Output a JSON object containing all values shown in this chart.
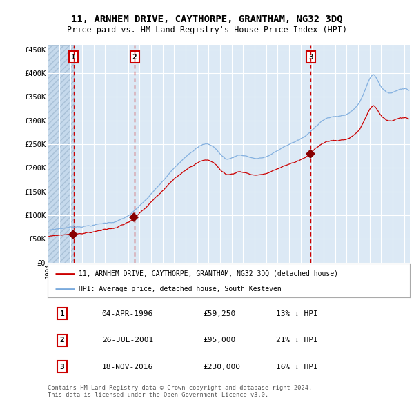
{
  "title": "11, ARNHEM DRIVE, CAYTHORPE, GRANTHAM, NG32 3DQ",
  "subtitle": "Price paid vs. HM Land Registry's House Price Index (HPI)",
  "ylabel_ticks": [
    "£0",
    "£50K",
    "£100K",
    "£150K",
    "£200K",
    "£250K",
    "£300K",
    "£350K",
    "£400K",
    "£450K"
  ],
  "ytick_values": [
    0,
    50000,
    100000,
    150000,
    200000,
    250000,
    300000,
    350000,
    400000,
    450000
  ],
  "ylim": [
    0,
    460000
  ],
  "sale_dates_str": [
    "1996-04-04",
    "2001-07-26",
    "2016-11-18"
  ],
  "sale_prices": [
    59250,
    95000,
    230000
  ],
  "sale_labels": [
    "1",
    "2",
    "3"
  ],
  "legend_property": "11, ARNHEM DRIVE, CAYTHORPE, GRANTHAM, NG32 3DQ (detached house)",
  "legend_hpi": "HPI: Average price, detached house, South Kesteven",
  "footer": "Contains HM Land Registry data © Crown copyright and database right 2024.\nThis data is licensed under the Open Government Licence v3.0.",
  "property_color": "#cc0000",
  "hpi_color": "#7aaadd",
  "dashed_line_color": "#cc0000",
  "background_color": "#dce9f5",
  "grid_color": "#ffffff",
  "marker_color": "#880000",
  "sale_box_color": "#cc0000",
  "table_entries": [
    [
      "1",
      "04-APR-1996",
      "£59,250",
      "13% ↓ HPI"
    ],
    [
      "2",
      "26-JUL-2001",
      "£95,000",
      "21% ↓ HPI"
    ],
    [
      "3",
      "18-NOV-2016",
      "£230,000",
      "16% ↓ HPI"
    ]
  ]
}
